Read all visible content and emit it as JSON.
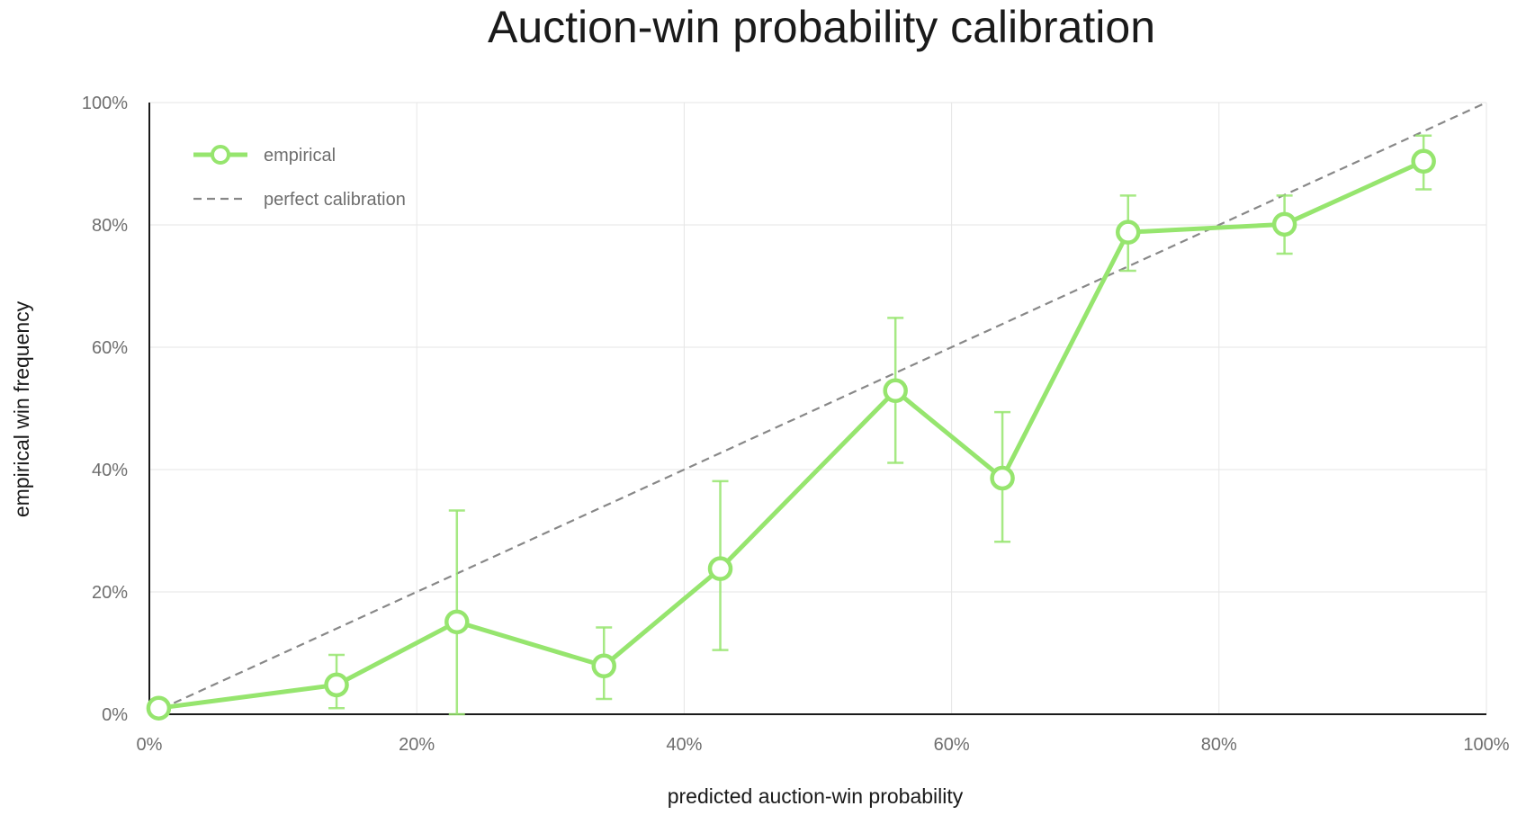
{
  "chart_data": {
    "type": "line",
    "title": "Auction-win probability calibration",
    "xlabel": "predicted auction-win probability",
    "ylabel": "empirical win frequency",
    "xlim": [
      0,
      1
    ],
    "ylim": [
      0,
      1
    ],
    "x_ticks": [
      0,
      0.2,
      0.4,
      0.6,
      0.8,
      1.0
    ],
    "x_tick_labels": [
      "0%",
      "20%",
      "40%",
      "60%",
      "80%",
      "100%"
    ],
    "y_ticks": [
      0,
      0.2,
      0.4,
      0.6,
      0.8,
      1.0
    ],
    "y_tick_labels": [
      "0%",
      "20%",
      "40%",
      "60%",
      "80%",
      "100%"
    ],
    "grid": true,
    "legend_position": "top-left",
    "series": [
      {
        "name": "empirical",
        "color": "#96e56e",
        "marker": "open-circle",
        "x": [
          0.007,
          0.14,
          0.23,
          0.34,
          0.427,
          0.558,
          0.638,
          0.732,
          0.849,
          0.953
        ],
        "y": [
          0.01,
          0.048,
          0.151,
          0.079,
          0.238,
          0.529,
          0.386,
          0.788,
          0.801,
          0.904
        ],
        "err_low": [
          0.0,
          0.01,
          0.0,
          0.025,
          0.105,
          0.411,
          0.282,
          0.725,
          0.753,
          0.858
        ],
        "err_high": [
          0.02,
          0.097,
          0.333,
          0.142,
          0.381,
          0.648,
          0.494,
          0.848,
          0.848,
          0.946
        ]
      },
      {
        "name": "perfect calibration",
        "color": "#888888",
        "style": "dashed",
        "x": [
          0,
          1
        ],
        "y": [
          0,
          1
        ]
      }
    ]
  }
}
